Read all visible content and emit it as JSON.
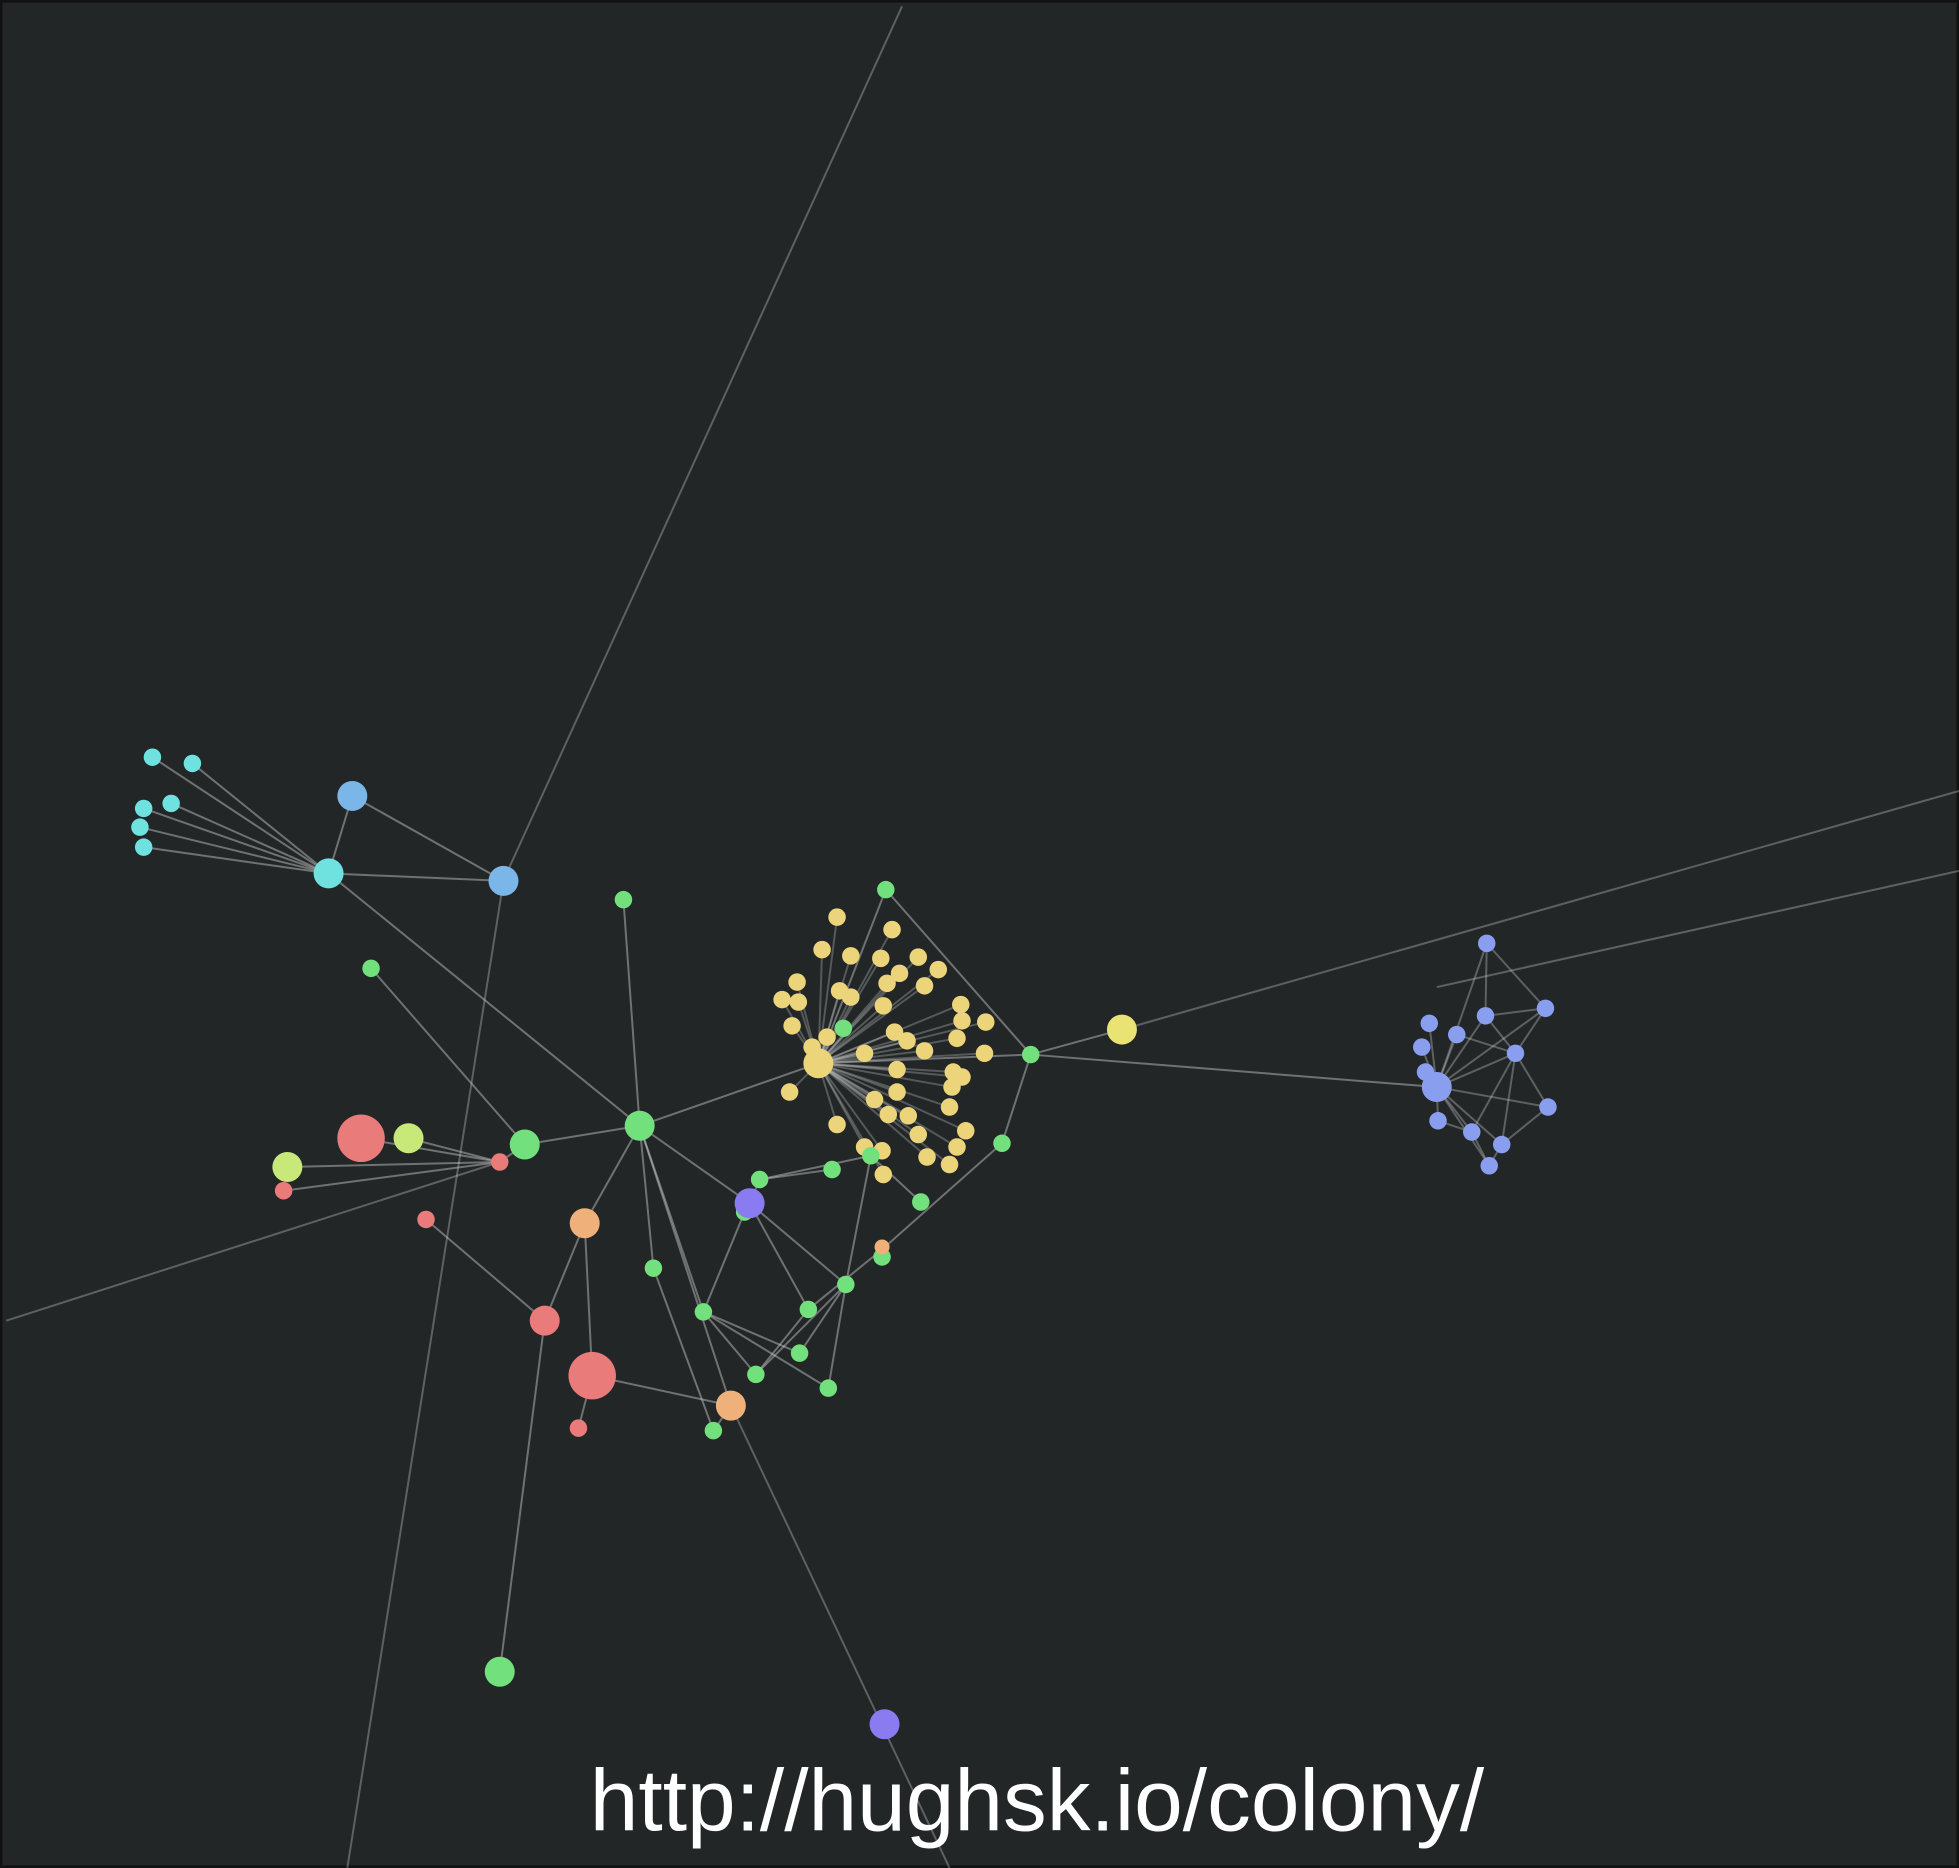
{
  "url": "http://hughsk.io/colony/"
}
